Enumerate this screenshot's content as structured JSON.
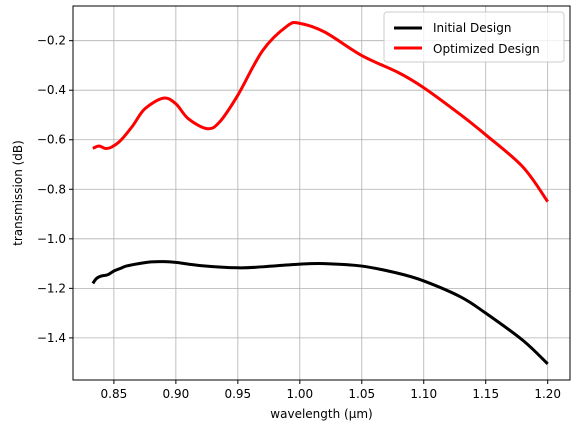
{
  "chart_data": {
    "type": "line",
    "xlabel": "wavelength (µm)",
    "ylabel": "transmission (dB)",
    "xlim": [
      0.817,
      1.218
    ],
    "ylim": [
      -1.57,
      -0.06
    ],
    "xticks": [
      0.85,
      0.9,
      0.95,
      1.0,
      1.05,
      1.1,
      1.15,
      1.2
    ],
    "xtick_labels": [
      "0.85",
      "0.90",
      "0.95",
      "1.00",
      "1.05",
      "1.10",
      "1.15",
      "1.20"
    ],
    "yticks": [
      -1.4,
      -1.2,
      -1.0,
      -0.8,
      -0.6,
      -0.4,
      -0.2
    ],
    "ytick_labels": [
      "−1.4",
      "−1.2",
      "−1.0",
      "−0.8",
      "−0.6",
      "−0.4",
      "−0.2"
    ],
    "grid": true,
    "legend_position": "top-right",
    "series": [
      {
        "name": "Initial Design",
        "color": "#000000",
        "x": [
          0.833,
          0.836,
          0.84,
          0.845,
          0.85,
          0.855,
          0.86,
          0.87,
          0.88,
          0.89,
          0.9,
          0.92,
          0.95,
          0.97,
          1.0,
          1.02,
          1.05,
          1.08,
          1.1,
          1.13,
          1.15,
          1.18,
          1.2
        ],
        "y": [
          -1.18,
          -1.16,
          -1.15,
          -1.145,
          -1.13,
          -1.12,
          -1.11,
          -1.1,
          -1.093,
          -1.092,
          -1.095,
          -1.108,
          -1.117,
          -1.113,
          -1.102,
          -1.1,
          -1.11,
          -1.14,
          -1.17,
          -1.235,
          -1.3,
          -1.41,
          -1.505
        ]
      },
      {
        "name": "Optimized Design",
        "color": "#ff0000",
        "x": [
          0.833,
          0.838,
          0.843,
          0.848,
          0.855,
          0.865,
          0.875,
          0.89,
          0.9,
          0.91,
          0.925,
          0.935,
          0.95,
          0.97,
          0.99,
          1.0,
          1.02,
          1.05,
          1.08,
          1.1,
          1.13,
          1.15,
          1.18,
          1.2
        ],
        "y": [
          -0.635,
          -0.625,
          -0.635,
          -0.63,
          -0.605,
          -0.545,
          -0.475,
          -0.432,
          -0.455,
          -0.515,
          -0.555,
          -0.53,
          -0.42,
          -0.24,
          -0.14,
          -0.13,
          -0.165,
          -0.26,
          -0.33,
          -0.39,
          -0.5,
          -0.58,
          -0.71,
          -0.85
        ]
      }
    ]
  }
}
